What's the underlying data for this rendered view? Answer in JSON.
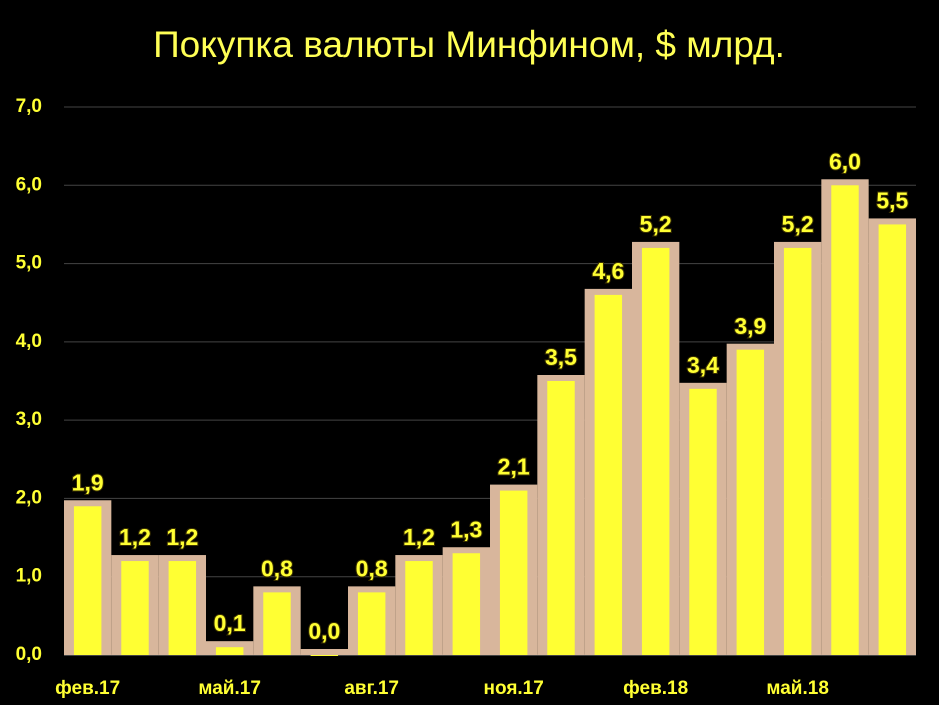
{
  "chart_data": {
    "type": "bar",
    "title": "Покупка валюты Минфином, $ млрд.",
    "categories": [
      "фев.17",
      null,
      null,
      "май.17",
      null,
      null,
      "авг.17",
      null,
      null,
      "ноя.17",
      null,
      null,
      "фев.18",
      null,
      null,
      "май.18",
      null,
      null
    ],
    "values": [
      1.9,
      1.2,
      1.2,
      0.1,
      0.8,
      0.0,
      0.8,
      1.2,
      1.3,
      2.1,
      3.5,
      4.6,
      5.2,
      3.4,
      3.9,
      5.2,
      6.0,
      5.5
    ],
    "value_labels": [
      "1,9",
      "1,2",
      "1,2",
      "0,1",
      "0,8",
      "0,0",
      "0,8",
      "1,2",
      "1,3",
      "2,1",
      "3,5",
      "4,6",
      "5,2",
      "3,4",
      "3,9",
      "5,2",
      "6,0",
      "5,5"
    ],
    "color": "#ffff33",
    "ylim": [
      0,
      7
    ],
    "yticks": [
      {
        "value": 0,
        "label": "0,0"
      },
      {
        "value": 1,
        "label": "1,0"
      },
      {
        "value": 2,
        "label": "2,0"
      },
      {
        "value": 3,
        "label": "3,0"
      },
      {
        "value": 4,
        "label": "4,0"
      },
      {
        "value": 5,
        "label": "5,0"
      },
      {
        "value": 6,
        "label": "6,0"
      },
      {
        "value": 7,
        "label": "7,0"
      }
    ],
    "grid": true
  }
}
